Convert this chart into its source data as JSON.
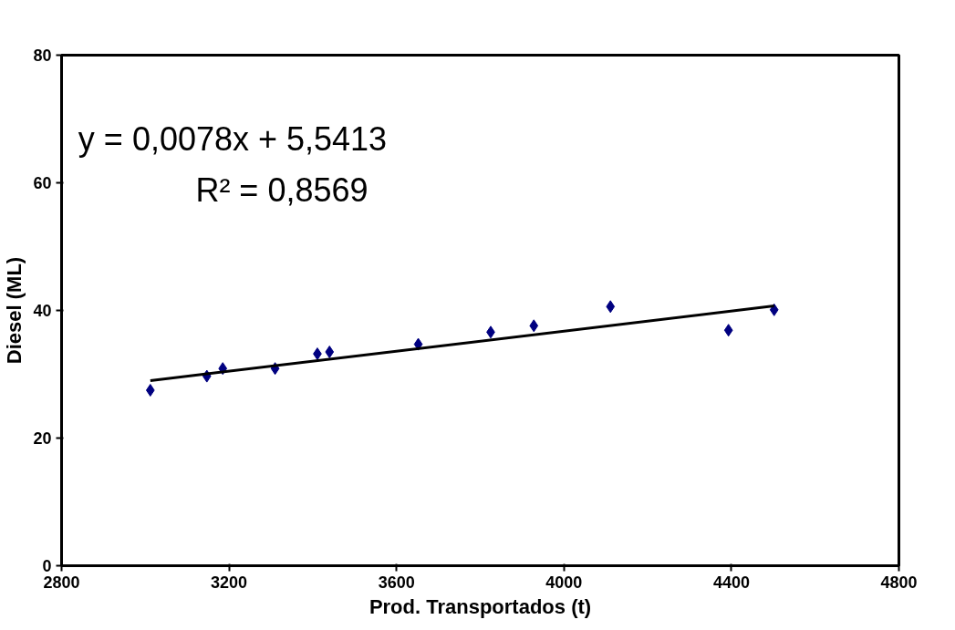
{
  "chart_data": {
    "type": "scatter",
    "xlabel": "Prod. Transportados (t)",
    "ylabel": "Diesel (ML)",
    "xlim": [
      2800,
      4800
    ],
    "ylim": [
      0,
      80
    ],
    "xticks": [
      2800,
      3200,
      3600,
      4000,
      4400,
      4800
    ],
    "yticks": [
      0,
      20,
      40,
      60,
      80
    ],
    "grid": false,
    "annotations": [
      "y = 0,0078x + 5,5413",
      "R² = 0,8569"
    ],
    "series": [
      {
        "marker": "diamond",
        "color": "#000080",
        "x": [
          3012,
          3147,
          3185,
          3310,
          3411,
          3440,
          3652,
          3825,
          3928,
          4111,
          4393,
          4502
        ],
        "values": [
          27.5,
          29.7,
          30.9,
          30.9,
          33.2,
          33.5,
          34.7,
          36.6,
          37.6,
          40.6,
          36.9,
          40.1
        ]
      },
      {
        "type": "line",
        "marker": "none",
        "color": "#000000",
        "line_style": "solid",
        "x": [
          3012,
          4502
        ],
        "values": [
          29.0,
          40.7
        ]
      }
    ]
  }
}
